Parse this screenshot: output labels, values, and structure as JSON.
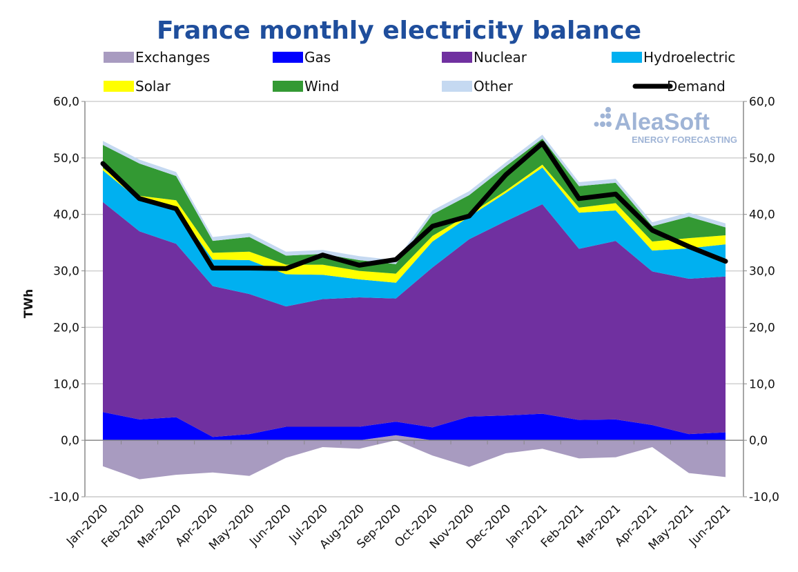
{
  "chart_data": {
    "type": "area",
    "title": "France monthly electricity balance",
    "ylabel": "TWh",
    "ylim": [
      -10,
      60
    ],
    "yticks": [
      "-10,0",
      "0,0",
      "10,0",
      "20,0",
      "30,0",
      "40,0",
      "50,0",
      "60,0"
    ],
    "grid": true,
    "legend_position": "top",
    "categories": [
      "Jan-2020",
      "Feb-2020",
      "Mar-2020",
      "Apr-2020",
      "May-2020",
      "Jun-2020",
      "Jul-2020",
      "Aug-2020",
      "Sep-2020",
      "Oct-2020",
      "Nov-2020",
      "Dec-2020",
      "Jan-2021",
      "Feb-2021",
      "Mar-2021",
      "Apr-2021",
      "May-2021",
      "Jun-2021"
    ],
    "series": [
      {
        "name": "Exchanges",
        "color": "#a89bc0",
        "values": [
          -4.6,
          -6.9,
          -6.1,
          -5.7,
          -6.3,
          -3.1,
          -1.2,
          -1.5,
          0.9,
          -2.7,
          -4.7,
          -2.3,
          -1.5,
          -3.2,
          -3.0,
          -1.2,
          -5.8,
          -6.5
        ]
      },
      {
        "name": "Gas",
        "color": "#0000ff",
        "values": [
          5.0,
          3.7,
          4.1,
          0.6,
          1.1,
          2.4,
          2.4,
          2.4,
          2.4,
          2.3,
          4.2,
          4.4,
          4.7,
          3.6,
          3.7,
          2.7,
          1.1,
          1.4
        ]
      },
      {
        "name": "Nuclear",
        "color": "#7030a0",
        "values": [
          37.2,
          33.3,
          30.7,
          26.7,
          24.8,
          21.3,
          22.6,
          22.9,
          21.8,
          28.3,
          31.4,
          34.4,
          37.1,
          30.3,
          31.6,
          27.2,
          27.5,
          27.6
        ]
      },
      {
        "name": "Hydroelectric",
        "color": "#00b0f0",
        "values": [
          5.6,
          5.5,
          6.2,
          4.7,
          6.0,
          5.7,
          4.3,
          3.2,
          2.8,
          4.6,
          4.0,
          5.0,
          6.5,
          6.4,
          5.4,
          3.7,
          5.4,
          5.7
        ]
      },
      {
        "name": "Solar",
        "color": "#ffff00",
        "values": [
          0.4,
          0.8,
          1.5,
          1.2,
          1.5,
          1.7,
          1.8,
          1.5,
          1.6,
          1.0,
          0.4,
          0.4,
          0.5,
          0.9,
          1.3,
          1.6,
          1.8,
          1.6
        ]
      },
      {
        "name": "Wind",
        "color": "#339933",
        "values": [
          4.1,
          5.7,
          4.3,
          2.1,
          2.6,
          1.6,
          1.9,
          1.9,
          1.7,
          3.8,
          3.4,
          4.3,
          4.6,
          3.8,
          3.6,
          2.7,
          3.8,
          1.4
        ]
      },
      {
        "name": "Other",
        "color": "#c5d9f1",
        "values": [
          0.7,
          0.7,
          0.7,
          0.7,
          0.7,
          0.7,
          0.7,
          0.7,
          0.7,
          0.7,
          0.7,
          0.7,
          0.7,
          0.7,
          0.7,
          0.7,
          0.7,
          0.7
        ]
      },
      {
        "name": "Demand",
        "color": "#000000",
        "type": "line",
        "values": [
          49.0,
          42.8,
          41.0,
          30.5,
          30.5,
          30.4,
          32.8,
          31.0,
          32.0,
          37.9,
          39.7,
          47.0,
          52.6,
          42.8,
          43.6,
          37.2,
          34.3,
          31.7
        ]
      }
    ]
  },
  "watermark": {
    "brand": "AleaSoft",
    "tagline": "ENERGY FORECASTING"
  }
}
